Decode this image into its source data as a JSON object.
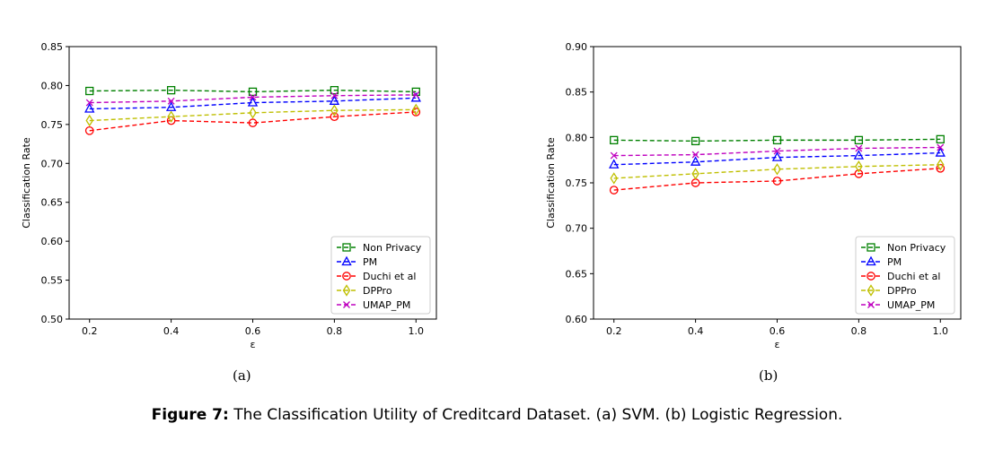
{
  "chart_data": [
    {
      "type": "line",
      "panel_label": "(a)",
      "xlabel": "ε",
      "ylabel": "Classification Rate",
      "x": [
        0.2,
        0.4,
        0.6,
        0.8,
        1.0
      ],
      "xticks": [
        "0.2",
        "0.4",
        "0.6",
        "0.8",
        "1.0"
      ],
      "ylim": [
        0.5,
        0.85
      ],
      "yticks": [
        "0.50",
        "0.55",
        "0.60",
        "0.65",
        "0.70",
        "0.75",
        "0.80",
        "0.85"
      ],
      "xlim": [
        0.15,
        1.05
      ],
      "grid": false,
      "legend_position": "lower-right",
      "series": [
        {
          "name": "Non Privacy",
          "marker": "square",
          "color": "#008000",
          "values": [
            0.793,
            0.794,
            0.792,
            0.794,
            0.792
          ]
        },
        {
          "name": "PM",
          "marker": "triangle",
          "color": "#0000ff",
          "values": [
            0.77,
            0.772,
            0.778,
            0.78,
            0.784
          ]
        },
        {
          "name": "Duchi et al",
          "marker": "circle",
          "color": "#ff0000",
          "values": [
            0.742,
            0.755,
            0.752,
            0.76,
            0.766
          ]
        },
        {
          "name": "DPPro",
          "marker": "diamond",
          "color": "#bfbf00",
          "values": [
            0.755,
            0.76,
            0.765,
            0.768,
            0.769
          ]
        },
        {
          "name": "UMAP_PM",
          "marker": "x",
          "color": "#bf00bf",
          "values": [
            0.778,
            0.78,
            0.785,
            0.787,
            0.788
          ]
        }
      ]
    },
    {
      "type": "line",
      "panel_label": "(b)",
      "xlabel": "ε",
      "ylabel": "Classification Rate",
      "x": [
        0.2,
        0.4,
        0.6,
        0.8,
        1.0
      ],
      "xticks": [
        "0.2",
        "0.4",
        "0.6",
        "0.8",
        "1.0"
      ],
      "ylim": [
        0.6,
        0.9
      ],
      "yticks": [
        "0.60",
        "0.65",
        "0.70",
        "0.75",
        "0.80",
        "0.85",
        "0.90"
      ],
      "xlim": [
        0.15,
        1.05
      ],
      "grid": false,
      "legend_position": "lower-right",
      "series": [
        {
          "name": "Non Privacy",
          "marker": "square",
          "color": "#008000",
          "values": [
            0.797,
            0.796,
            0.797,
            0.797,
            0.798
          ]
        },
        {
          "name": "PM",
          "marker": "triangle",
          "color": "#0000ff",
          "values": [
            0.77,
            0.773,
            0.778,
            0.78,
            0.783
          ]
        },
        {
          "name": "Duchi et al",
          "marker": "circle",
          "color": "#ff0000",
          "values": [
            0.742,
            0.75,
            0.752,
            0.76,
            0.766
          ]
        },
        {
          "name": "DPPro",
          "marker": "diamond",
          "color": "#bfbf00",
          "values": [
            0.755,
            0.76,
            0.765,
            0.768,
            0.77
          ]
        },
        {
          "name": "UMAP_PM",
          "marker": "x",
          "color": "#bf00bf",
          "values": [
            0.78,
            0.781,
            0.785,
            0.788,
            0.789
          ]
        }
      ]
    }
  ],
  "caption": {
    "label": "Figure 7:",
    "text": " The Classification Utility of Creditcard Dataset. (a) SVM. (b) Logistic Regression."
  }
}
